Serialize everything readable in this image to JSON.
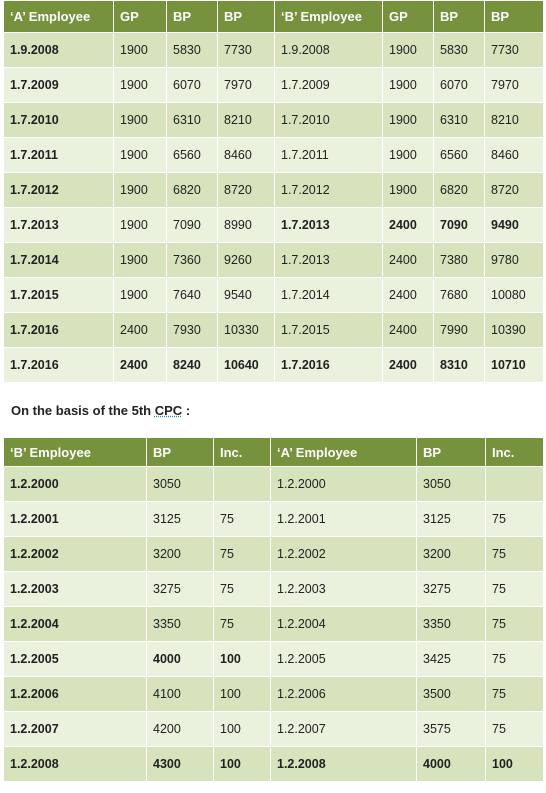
{
  "table1": {
    "headers": [
      "‘A’ Employee",
      "GP",
      "BP",
      "BP",
      "‘B’ Employee",
      "GP",
      "BP",
      "BP"
    ],
    "rows": [
      [
        "1.9.2008",
        "1900",
        "5830",
        "7730",
        "1.9.2008",
        "1900",
        "5830",
        "7730"
      ],
      [
        "1.7.2009",
        "1900",
        "6070",
        "7970",
        "1.7.2009",
        "1900",
        "6070",
        "7970"
      ],
      [
        "1.7.2010",
        "1900",
        "6310",
        "8210",
        "1.7.2010",
        "1900",
        "6310",
        "8210"
      ],
      [
        "1.7.2011",
        "1900",
        "6560",
        "8460",
        "1.7.2011",
        "1900",
        "6560",
        "8460"
      ],
      [
        "1.7.2012",
        "1900",
        "6820",
        "8720",
        "1.7.2012",
        "1900",
        "6820",
        "8720"
      ],
      [
        "1.7.2013",
        "1900",
        "7090",
        "8990",
        "1.7.2013",
        "2400",
        "7090",
        "9490"
      ],
      [
        "1.7.2014",
        "1900",
        "7360",
        "9260",
        "1.7.2013",
        "2400",
        "7380",
        "9780"
      ],
      [
        "1.7.2015",
        "1900",
        "7640",
        "9540",
        "1.7.2014",
        "2400",
        "7680",
        "10080"
      ],
      [
        "1.7.2016",
        "2400",
        "7930",
        "10330",
        "1.7.2015",
        "2400",
        "7990",
        "10390"
      ],
      [
        "1.7.2016",
        "2400",
        "8240",
        "10640",
        "1.7.2016",
        "2400",
        "8310",
        "10710"
      ]
    ]
  },
  "basis_text_prefix": "On the basis of the 5th ",
  "basis_text_cpc": "CPC",
  "basis_text_suffix": " :",
  "table2": {
    "headers": [
      "‘B’ Employee",
      "BP",
      "Inc.",
      "‘A’ Employee",
      "BP",
      "Inc."
    ],
    "rows": [
      [
        "1.2.2000",
        "3050",
        "",
        "1.2.2000",
        "3050",
        ""
      ],
      [
        "1.2.2001",
        "3125",
        "75",
        "1.2.2001",
        "3125",
        "75"
      ],
      [
        "1.2.2002",
        "3200",
        "75",
        "1.2.2002",
        "3200",
        "75"
      ],
      [
        "1.2.2003",
        "3275",
        "75",
        "1.2.2003",
        "3275",
        "75"
      ],
      [
        "1.2.2004",
        "3350",
        "75",
        "1.2.2004",
        "3350",
        "75"
      ],
      [
        "1.2.2005",
        "4000",
        "100",
        "1.2.2005",
        "3425",
        "75"
      ],
      [
        "1.2.2006",
        "4100",
        "100",
        "1.2.2006",
        "3500",
        "75"
      ],
      [
        "1.2.2007",
        "4200",
        "100",
        "1.2.2007",
        "3575",
        "75"
      ],
      [
        "1.2.2008",
        "4300",
        "100",
        "1.2.2008",
        "4000",
        "100"
      ]
    ]
  }
}
